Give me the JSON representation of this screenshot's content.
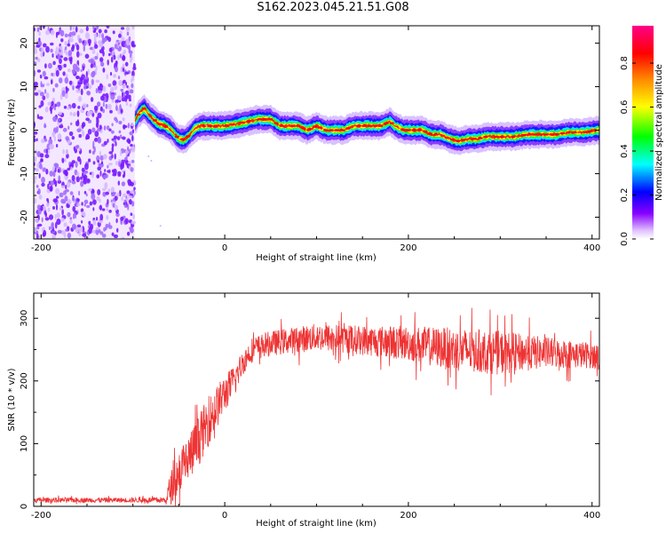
{
  "title": "S162.2023.045.21.51.G08",
  "chart_data": [
    {
      "type": "heatmap",
      "xlabel": "Height of straight line (km)",
      "ylabel": "Frequency (Hz)",
      "xlim": [
        -208,
        408
      ],
      "ylim": [
        -25,
        24
      ],
      "x_ticks": [
        -200,
        0,
        200,
        400
      ],
      "y_ticks": [
        -20,
        -10,
        0,
        10,
        20
      ],
      "colorbar": {
        "label": "Normalized spectral amplitude",
        "ticks": [
          0.0,
          0.2,
          0.4,
          0.6,
          0.8
        ],
        "range": [
          0,
          0.97
        ]
      },
      "noise_region_x": [
        -208,
        -98
      ],
      "ridge": {
        "x": [
          -98,
          -93,
          -88,
          -80,
          -72,
          -65,
          -58,
          -50,
          -44,
          -38,
          -32,
          -25,
          -15,
          0,
          15,
          25,
          35,
          50,
          60,
          70,
          80,
          90,
          100,
          110,
          120,
          130,
          140,
          150,
          160,
          170,
          180,
          185,
          195,
          205,
          215,
          225,
          235,
          245,
          255,
          265,
          275,
          285,
          300,
          315,
          330,
          345,
          360,
          375,
          390,
          408
        ],
        "y": [
          2,
          4,
          5,
          3,
          1.5,
          1,
          0,
          -2,
          -2.2,
          -1,
          0.5,
          1,
          1,
          1,
          1.5,
          2,
          2.5,
          2.5,
          1,
          1,
          1,
          0,
          1,
          0,
          0,
          0,
          1,
          1,
          1,
          1,
          2,
          1,
          0,
          0,
          0,
          -1,
          -1,
          -2,
          -2.5,
          -2,
          -2,
          -1.5,
          -1.5,
          -1.5,
          -1,
          -1,
          -1,
          -0.5,
          -0.5,
          0
        ]
      },
      "colors": [
        "#ffffff",
        "#cc88ff",
        "#7a00ff",
        "#0000ff",
        "#00ffff",
        "#00ff00",
        "#ffff00",
        "#ff8800",
        "#ff0000",
        "#ff00aa"
      ]
    },
    {
      "type": "line",
      "xlabel": "Height of straight line (km)",
      "ylabel": "SNR (10 * v/v)",
      "xlim": [
        -208,
        408
      ],
      "ylim": [
        0,
        340
      ],
      "x_ticks": [
        -200,
        0,
        200,
        400
      ],
      "y_ticks": [
        0,
        100,
        200,
        300
      ],
      "series": [
        {
          "color": "#ee3333",
          "x": [
            -208,
            -100,
            -65,
            -60,
            -50,
            -40,
            -30,
            -20,
            -10,
            0,
            10,
            20,
            30,
            50,
            100,
            150,
            200,
            250,
            300,
            350,
            408
          ],
          "y": [
            10,
            10,
            10,
            25,
            55,
            75,
            100,
            130,
            155,
            180,
            200,
            230,
            250,
            260,
            270,
            265,
            260,
            250,
            245,
            245,
            240
          ],
          "noise": [
            4,
            4,
            5,
            25,
            35,
            40,
            40,
            40,
            35,
            30,
            25,
            20,
            20,
            20,
            22,
            24,
            28,
            35,
            35,
            25,
            20
          ]
        }
      ]
    }
  ]
}
